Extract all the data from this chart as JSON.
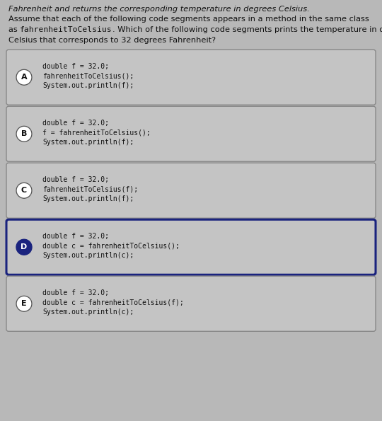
{
  "bg_color": "#b8b8b8",
  "box_bg": "#c0c0c0",
  "header_text_color": "#111111",
  "header_line1": "Fahrenheit and returns the corresponding temperature in degrees Celsius.",
  "header_line2": "Assume that each of the following code segments appears in a method in the same class",
  "header_line3_part1": "as ",
  "header_line3_mono": "fahrenheitToCelsius",
  "header_line3_part2": ". Which of the following code segments prints the temperature in degrees",
  "header_line4": "Celsius that corresponds to 32 degrees Fahrenheit?",
  "options": [
    {
      "label": "A",
      "label_filled": false,
      "border_color": "#888888",
      "lines": [
        "double f = 32.0;",
        "fahrenheitToCelsius();",
        "System.out.println(f);"
      ]
    },
    {
      "label": "B",
      "label_filled": false,
      "border_color": "#888888",
      "lines": [
        "double f = 32.0;",
        "f = fahrenheitToCelsius();",
        "System.out.println(f);"
      ]
    },
    {
      "label": "C",
      "label_filled": false,
      "border_color": "#888888",
      "lines": [
        "double f = 32.0;",
        "fahrenheitToCelsius(f);",
        "System.out.println(f);"
      ]
    },
    {
      "label": "D",
      "label_filled": true,
      "border_color": "#1a237e",
      "lines": [
        "double f = 32.0;",
        "double c = fahrenheitToCelsius();",
        "System.out.println(c);"
      ]
    },
    {
      "label": "E",
      "label_filled": false,
      "border_color": "#888888",
      "lines": [
        "double f = 32.0;",
        "double c = fahrenheitToCelsius(f);",
        "System.out.println(c);"
      ]
    }
  ],
  "mono_font_size": 7.0,
  "header_font_size": 8.2,
  "label_font_size": 8.0,
  "fig_width": 5.4,
  "fig_height": 5.95,
  "dpi": 100
}
